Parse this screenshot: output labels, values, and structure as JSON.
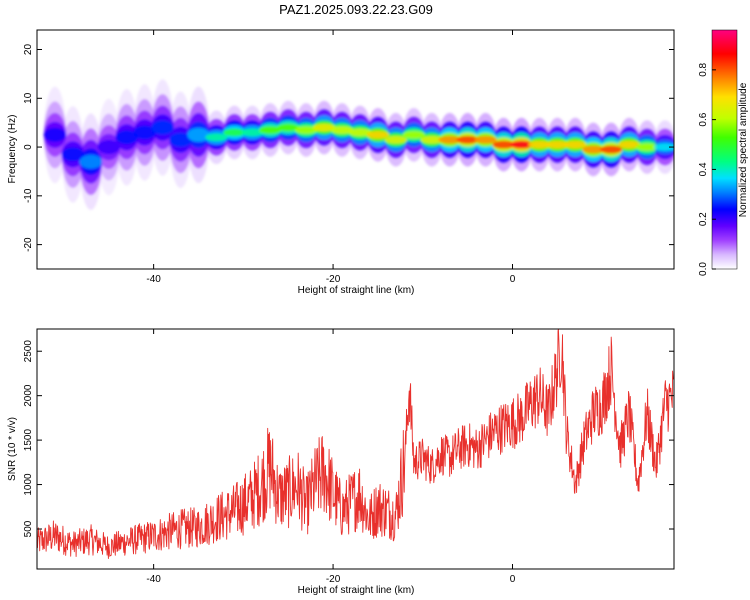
{
  "title": "PAZ1.2025.093.22.23.G09",
  "chart_data": [
    {
      "type": "heatmap",
      "xlabel": "Height of straight line (km)",
      "ylabel": "Frequency (Hz)",
      "xlim": [
        -53,
        18
      ],
      "ylim": [
        -25,
        24
      ],
      "xticks": [
        -40,
        -20,
        0
      ],
      "yticks": [
        -20,
        -10,
        0,
        10,
        20
      ],
      "colorbar": {
        "label": "Normalized spectral amplitude",
        "range": [
          0.0,
          0.96
        ],
        "ticks": [
          0.0,
          0.2,
          0.4,
          0.6,
          0.8
        ],
        "colormap": [
          "#ffffff",
          "#d8b8ff",
          "#a040ff",
          "#6000ff",
          "#0000ff",
          "#0080ff",
          "#00e0ff",
          "#00ff80",
          "#40ff00",
          "#c0ff00",
          "#ffe000",
          "#ff8000",
          "#ff0000",
          "#ff0080"
        ]
      },
      "ridge": [
        {
          "x": -51,
          "y": 2.5,
          "a": 0.28
        },
        {
          "x": -49,
          "y": -1.5,
          "a": 0.3
        },
        {
          "x": -47,
          "y": -3.0,
          "a": 0.38
        },
        {
          "x": -45,
          "y": 0.0,
          "a": 0.25
        },
        {
          "x": -43,
          "y": 2.0,
          "a": 0.3
        },
        {
          "x": -41,
          "y": 3.0,
          "a": 0.3
        },
        {
          "x": -39,
          "y": 4.0,
          "a": 0.32
        },
        {
          "x": -37,
          "y": 1.5,
          "a": 0.32
        },
        {
          "x": -35,
          "y": 2.5,
          "a": 0.4
        },
        {
          "x": -33,
          "y": 2.0,
          "a": 0.5
        },
        {
          "x": -31,
          "y": 3.0,
          "a": 0.55
        },
        {
          "x": -29,
          "y": 3.0,
          "a": 0.5
        },
        {
          "x": -27,
          "y": 3.5,
          "a": 0.6
        },
        {
          "x": -25,
          "y": 4.0,
          "a": 0.6
        },
        {
          "x": -23,
          "y": 3.5,
          "a": 0.65
        },
        {
          "x": -21,
          "y": 4.0,
          "a": 0.72
        },
        {
          "x": -19,
          "y": 3.5,
          "a": 0.68
        },
        {
          "x": -17,
          "y": 3.0,
          "a": 0.68
        },
        {
          "x": -15,
          "y": 2.5,
          "a": 0.75
        },
        {
          "x": -13,
          "y": 1.5,
          "a": 0.7
        },
        {
          "x": -11,
          "y": 2.5,
          "a": 0.65
        },
        {
          "x": -9,
          "y": 1.5,
          "a": 0.7
        },
        {
          "x": -7,
          "y": 1.5,
          "a": 0.8
        },
        {
          "x": -5,
          "y": 1.5,
          "a": 0.85
        },
        {
          "x": -3,
          "y": 1.5,
          "a": 0.8
        },
        {
          "x": -1,
          "y": 0.5,
          "a": 0.85
        },
        {
          "x": 1,
          "y": 0.5,
          "a": 0.9
        },
        {
          "x": 3,
          "y": 0.5,
          "a": 0.75
        },
        {
          "x": 5,
          "y": 0.5,
          "a": 0.75
        },
        {
          "x": 7,
          "y": 0.5,
          "a": 0.75
        },
        {
          "x": 9,
          "y": -0.5,
          "a": 0.8
        },
        {
          "x": 11,
          "y": -0.5,
          "a": 0.85
        },
        {
          "x": 13,
          "y": 0.5,
          "a": 0.75
        },
        {
          "x": 15,
          "y": 0.0,
          "a": 0.65
        },
        {
          "x": 17,
          "y": 0.0,
          "a": 0.45
        }
      ]
    },
    {
      "type": "line",
      "xlabel": "Height of straight line (km)",
      "ylabel": "SNR (10 * v/v)",
      "xlim": [
        -53,
        18
      ],
      "ylim": [
        50,
        2750
      ],
      "xticks": [
        -40,
        -20,
        0
      ],
      "yticks": [
        500,
        1000,
        1500,
        2000,
        2500
      ],
      "series": [
        {
          "color": "#e8302c",
          "x": [
            -53,
            -51,
            -49,
            -47,
            -45,
            -43,
            -41,
            -39,
            -37,
            -35,
            -33,
            -31,
            -29,
            -28,
            -27,
            -26,
            -25,
            -24,
            -23,
            -22,
            -21,
            -20,
            -19,
            -18,
            -17,
            -16,
            -15,
            -14,
            -13,
            -12,
            -11.5,
            -11,
            -10,
            -9,
            -8,
            -7,
            -6,
            -5,
            -4,
            -3,
            -2,
            -1,
            0,
            1,
            2,
            3,
            4,
            5,
            5.5,
            6,
            7,
            8,
            9,
            10,
            11,
            12,
            13,
            14,
            15,
            16,
            17,
            18
          ],
          "y": [
            350,
            420,
            330,
            380,
            300,
            360,
            400,
            450,
            500,
            520,
            620,
            700,
            850,
            1000,
            1200,
            850,
            900,
            1000,
            750,
            1000,
            1150,
            900,
            700,
            800,
            900,
            600,
            750,
            700,
            650,
            1300,
            2100,
            1250,
            1300,
            1200,
            1350,
            1300,
            1400,
            1450,
            1400,
            1500,
            1600,
            1650,
            1700,
            1750,
            1900,
            2000,
            1800,
            2300,
            2600,
            1600,
            1000,
            1500,
            1800,
            1900,
            2300,
            1400,
            1800,
            1000,
            1800,
            1200,
            1900,
            2000
          ]
        }
      ]
    }
  ]
}
